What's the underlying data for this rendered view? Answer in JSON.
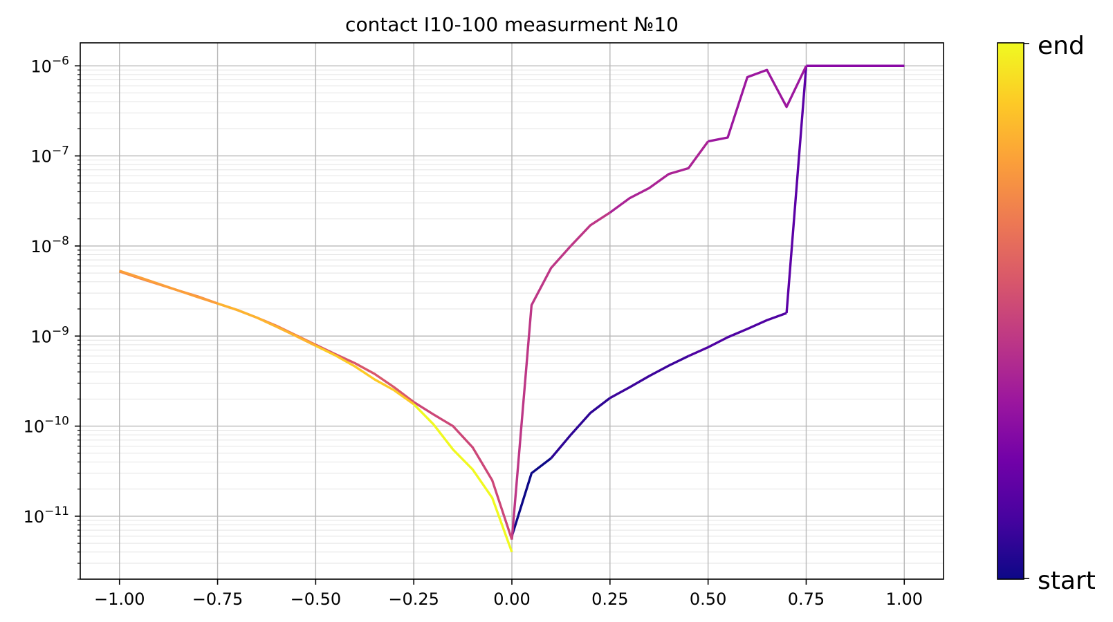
{
  "chart_data": {
    "type": "line",
    "title": "contact I10-100 measurment №10",
    "xlabel": "",
    "ylabel": "",
    "y_scale": "log",
    "xlim": [
      -1.1,
      1.1
    ],
    "ylim": [
      2e-12,
      1.8e-06
    ],
    "grid": true,
    "x_ticks": [
      -1.0,
      -0.75,
      -0.5,
      -0.25,
      0.0,
      0.25,
      0.5,
      0.75,
      1.0
    ],
    "x_tick_labels": [
      "−1.00",
      "−0.75",
      "−0.50",
      "−0.25",
      "0.00",
      "0.25",
      "0.50",
      "0.75",
      "1.00"
    ],
    "y_ticks": [
      {
        "value": 1e-06,
        "base": "10",
        "exp": "−6"
      },
      {
        "value": 1e-07,
        "base": "10",
        "exp": "−7"
      },
      {
        "value": 1e-08,
        "base": "10",
        "exp": "−8"
      },
      {
        "value": 1e-09,
        "base": "10",
        "exp": "−9"
      },
      {
        "value": 1e-10,
        "base": "10",
        "exp": "−10"
      },
      {
        "value": 1e-11,
        "base": "10",
        "exp": "−11"
      }
    ],
    "colorbar": {
      "colormap": "plasma",
      "colors": [
        "#0d0887",
        "#46039f",
        "#7201a8",
        "#9c179e",
        "#bd3786",
        "#d8576b",
        "#ed7953",
        "#fb9f3a",
        "#fdca26",
        "#f0f921"
      ],
      "start_label": "start",
      "end_label": "end"
    },
    "series": [
      {
        "color": "#0d0887",
        "x": [
          0.0,
          0.05,
          0.1
        ],
        "y": [
          6e-12,
          3e-11,
          4.4e-11
        ]
      },
      {
        "color": "#2e0595",
        "x": [
          0.1,
          0.15,
          0.2,
          0.25
        ],
        "y": [
          4.4e-11,
          8e-11,
          1.4e-10,
          2.05e-10
        ]
      },
      {
        "color": "#3d049b",
        "x": [
          0.25,
          0.3,
          0.35,
          0.4,
          0.45
        ],
        "y": [
          2.05e-10,
          2.7e-10,
          3.6e-10,
          4.7e-10,
          6e-10
        ]
      },
      {
        "color": "#4f02a2",
        "x": [
          0.45,
          0.5,
          0.55,
          0.6,
          0.65,
          0.7
        ],
        "y": [
          6e-10,
          7.5e-10,
          9.7e-10,
          1.2e-09,
          1.5e-09,
          1.8e-09
        ]
      },
      {
        "color": "#5c01a6",
        "x": [
          0.7,
          0.75
        ],
        "y": [
          1.8e-09,
          1e-06
        ]
      },
      {
        "color": "#7201a8",
        "x": [
          0.75,
          0.8,
          0.85,
          0.9,
          0.95,
          1.0
        ],
        "y": [
          1e-06,
          1e-06,
          1e-06,
          1e-06,
          1e-06,
          1e-06
        ]
      },
      {
        "color": "#8a09a5",
        "x": [
          1.0,
          0.95,
          0.9,
          0.85,
          0.8,
          0.75
        ],
        "y": [
          1e-06,
          1e-06,
          1e-06,
          1e-06,
          1e-06,
          1e-06
        ]
      },
      {
        "color": "#9c179e",
        "x": [
          0.75,
          0.7,
          0.65,
          0.6,
          0.55,
          0.5
        ],
        "y": [
          1e-06,
          3.5e-07,
          9e-07,
          7.5e-07,
          1.6e-07,
          1.45e-07
        ]
      },
      {
        "color": "#aa2395",
        "x": [
          0.5,
          0.45,
          0.4,
          0.35,
          0.3,
          0.25
        ],
        "y": [
          1.45e-07,
          7.3e-08,
          6.3e-08,
          4.4e-08,
          3.4e-08,
          2.35e-08
        ]
      },
      {
        "color": "#bd3786",
        "x": [
          0.25,
          0.2,
          0.15,
          0.1,
          0.05,
          0.0
        ],
        "y": [
          2.35e-08,
          1.7e-08,
          1e-08,
          5.7e-09,
          2.2e-09,
          5.5e-12
        ]
      },
      {
        "color": "#cc4778",
        "x": [
          0.0,
          -0.05,
          -0.1,
          -0.15,
          -0.2,
          -0.25
        ],
        "y": [
          5.5e-12,
          2.5e-11,
          5.8e-11,
          1e-10,
          1.35e-10,
          1.85e-10
        ]
      },
      {
        "color": "#d8576b",
        "x": [
          -0.25,
          -0.3,
          -0.35,
          -0.4,
          -0.45,
          -0.5
        ],
        "y": [
          1.85e-10,
          2.7e-10,
          3.8e-10,
          5e-10,
          6.3e-10,
          8e-10
        ]
      },
      {
        "color": "#ed7953",
        "x": [
          -0.5,
          -0.55,
          -0.6,
          -0.65,
          -0.7,
          -0.75
        ],
        "y": [
          8e-10,
          1.02e-09,
          1.3e-09,
          1.6e-09,
          1.95e-09,
          2.3e-09
        ]
      },
      {
        "color": "#f48849",
        "x": [
          -0.75,
          -0.8,
          -0.85,
          -0.9,
          -0.95,
          -1.0
        ],
        "y": [
          2.3e-09,
          2.75e-09,
          3.2e-09,
          3.75e-09,
          4.4e-09,
          5.2e-09
        ]
      },
      {
        "color": "#fb9f3a",
        "x": [
          -1.0,
          -0.95,
          -0.9,
          -0.85,
          -0.8,
          -0.75
        ],
        "y": [
          5.3e-09,
          4.5e-09,
          3.8e-09,
          3.2e-09,
          2.7e-09,
          2.3e-09
        ]
      },
      {
        "color": "#fdb42f",
        "x": [
          -0.75,
          -0.7,
          -0.65,
          -0.6,
          -0.55,
          -0.5
        ],
        "y": [
          2.3e-09,
          1.95e-09,
          1.6e-09,
          1.27e-09,
          1e-09,
          7.8e-10
        ]
      },
      {
        "color": "#fdca26",
        "x": [
          -0.5,
          -0.45,
          -0.4,
          -0.35,
          -0.3,
          -0.25
        ],
        "y": [
          7.8e-10,
          6.1e-10,
          4.6e-10,
          3.3e-10,
          2.5e-10,
          1.75e-10
        ]
      },
      {
        "color": "#f0f921",
        "x": [
          -0.25,
          -0.2,
          -0.15,
          -0.1,
          -0.05,
          0.0
        ],
        "y": [
          1.75e-10,
          1.05e-10,
          5.5e-11,
          3.3e-11,
          1.6e-11,
          4e-12
        ]
      }
    ]
  }
}
